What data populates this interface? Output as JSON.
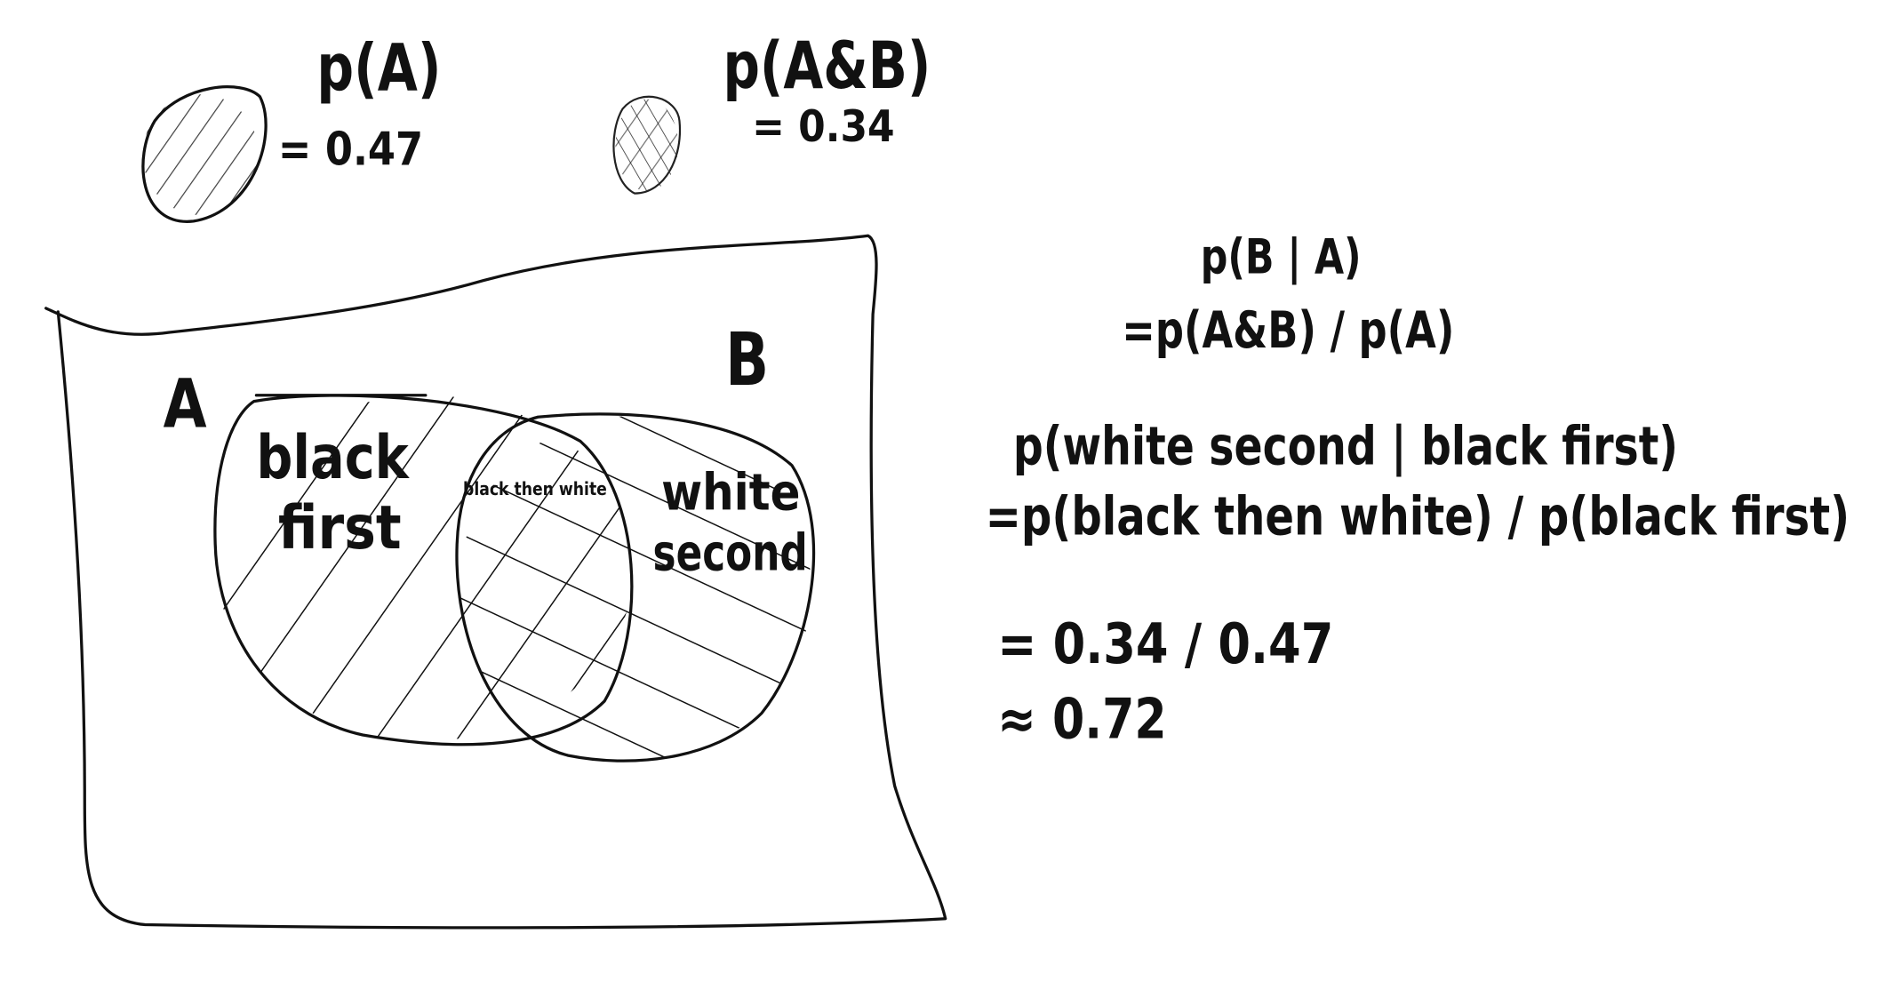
{
  "legend": [
    {
      "label": "p(A)",
      "value": "= 0.47"
    },
    {
      "label": "p(A&B)",
      "value": "= 0.34"
    }
  ],
  "venn": {
    "set_a": "A",
    "set_b": "B",
    "region_a": [
      "black",
      "first"
    ],
    "intersection": "black then white",
    "region_b": [
      "white",
      "second"
    ]
  },
  "formulas": [
    "p(B | A)",
    "=p(A&B) / p(A)",
    "p(white second | black first)",
    "=p(black then white) / p(black first)",
    "= 0.34 / 0.47",
    "≈ 0.72"
  ]
}
